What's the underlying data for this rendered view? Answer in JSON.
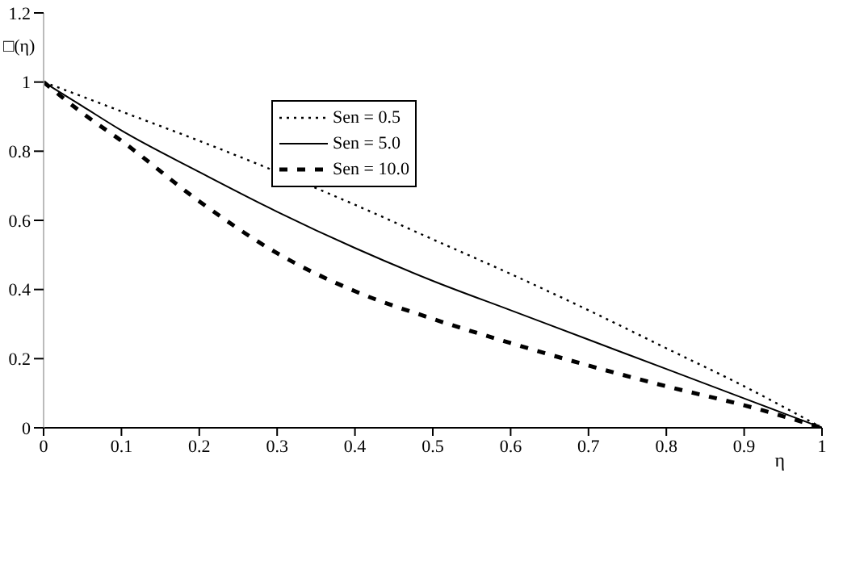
{
  "chart_data": {
    "type": "line",
    "xlabel": "η",
    "ylabel": "□(η)",
    "x": [
      0,
      0.05,
      0.1,
      0.2,
      0.3,
      0.4,
      0.5,
      0.6,
      0.7,
      0.8,
      0.9,
      1
    ],
    "series": [
      {
        "name": "Sen = 0.5",
        "color": "#000000",
        "line_style": "dotted",
        "values": [
          1,
          0.958,
          0.915,
          0.83,
          0.74,
          0.645,
          0.545,
          0.445,
          0.34,
          0.23,
          0.12,
          0
        ]
      },
      {
        "name": "Sen = 5.0",
        "color": "#000000",
        "line_style": "solid",
        "values": [
          1,
          0.93,
          0.86,
          0.74,
          0.625,
          0.52,
          0.425,
          0.34,
          0.255,
          0.17,
          0.085,
          0
        ]
      },
      {
        "name": "Sen = 10.0",
        "color": "#000000",
        "line_style": "dashed",
        "values": [
          1,
          0.91,
          0.83,
          0.655,
          0.505,
          0.395,
          0.315,
          0.245,
          0.18,
          0.12,
          0.065,
          0
        ]
      }
    ],
    "xlim": [
      0,
      1
    ],
    "xticks": [
      0,
      0.1,
      0.2,
      0.3,
      0.4,
      0.5,
      0.6,
      0.7,
      0.8,
      0.9,
      1
    ],
    "ylim": [
      0,
      1.2
    ],
    "yticks": [
      0,
      0.2,
      0.4,
      0.6,
      0.8,
      1,
      1.2
    ],
    "grid": false,
    "legend": "top",
    "marker": "none"
  }
}
